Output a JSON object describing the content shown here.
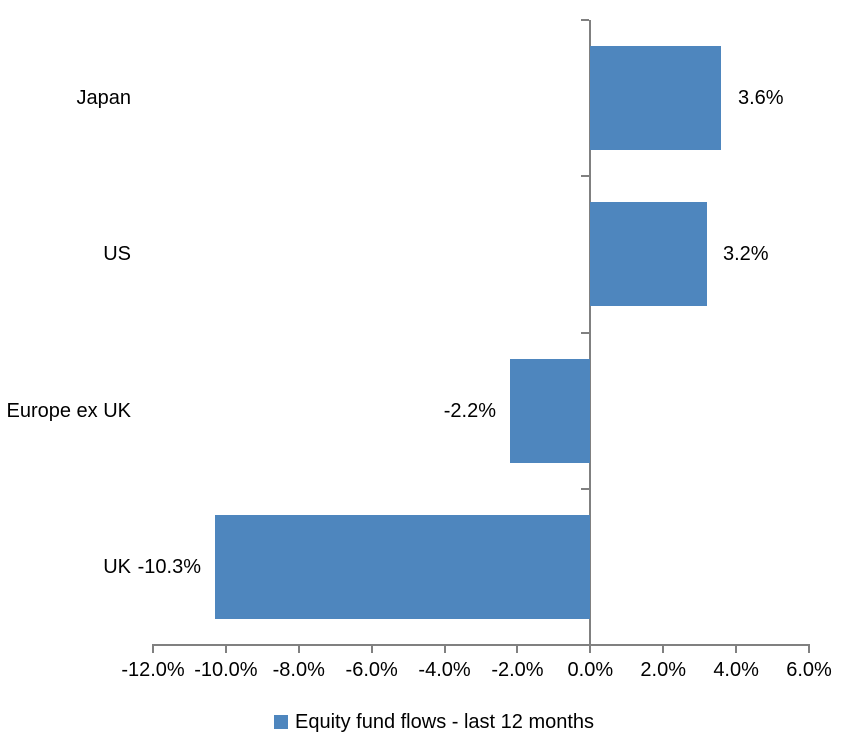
{
  "chart_data": {
    "type": "bar",
    "orientation": "horizontal",
    "categories": [
      "Japan",
      "US",
      "Europe ex UK",
      "UK"
    ],
    "values": [
      3.6,
      3.2,
      -2.2,
      -10.3
    ],
    "value_labels": [
      "3.6%",
      "3.2%",
      "-2.2%",
      "-10.3%"
    ],
    "x_ticks": [
      -12,
      -10,
      -8,
      -6,
      -4,
      -2,
      0,
      2,
      4,
      6
    ],
    "x_tick_labels": [
      "-12.0%",
      "-10.0%",
      "-8.0%",
      "-6.0%",
      "-4.0%",
      "-2.0%",
      "0.0%",
      "2.0%",
      "4.0%",
      "6.0%"
    ],
    "xlim": [
      -12,
      6
    ],
    "grid": false,
    "legend_position": "bottom",
    "legend": {
      "label": "Equity fund flows - last 12 months"
    },
    "colors": {
      "bar": "#4E86BE",
      "axis": "#808080",
      "text": "#000000",
      "background": "#FFFFFF"
    }
  }
}
